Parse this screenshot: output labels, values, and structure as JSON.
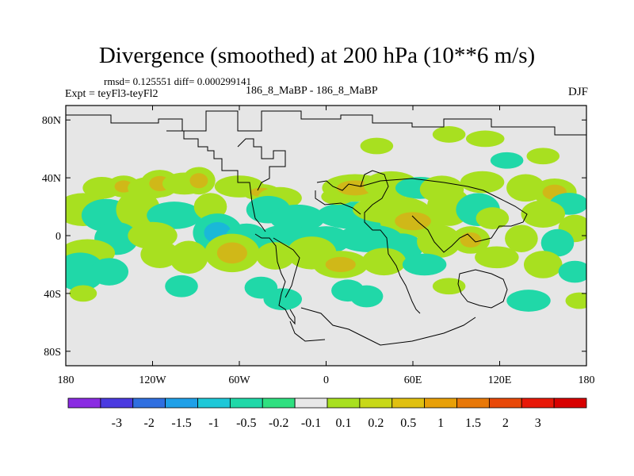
{
  "header": {
    "title": "Divergence (smoothed) at 200 hPa (10**6 m/s)",
    "stats": "rmsd= 0.125551 diff= 0.000299141",
    "experiment": "Expt = teyFl3-teyFl2",
    "case_label": "186_8_MaBP - 186_8_MaBP",
    "season": "DJF"
  },
  "chart_data": {
    "type": "heatmap",
    "title": "Divergence (smoothed) at 200 hPa (10**6 m/s)",
    "xlabel": "",
    "ylabel": "",
    "xlim": [
      -180,
      180
    ],
    "ylim": [
      -90,
      90
    ],
    "x_ticks": [
      {
        "value": -180,
        "label": "180"
      },
      {
        "value": -120,
        "label": "120W"
      },
      {
        "value": -60,
        "label": "60W"
      },
      {
        "value": 0,
        "label": "0"
      },
      {
        "value": 60,
        "label": "60E"
      },
      {
        "value": 120,
        "label": "120E"
      },
      {
        "value": 180,
        "label": "180"
      }
    ],
    "y_ticks": [
      {
        "value": 80,
        "label": "80N"
      },
      {
        "value": 40,
        "label": "40N"
      },
      {
        "value": 0,
        "label": "0"
      },
      {
        "value": -40,
        "label": "40S"
      },
      {
        "value": -80,
        "label": "80S"
      }
    ],
    "colorbar": {
      "colors": [
        "#8a2be2",
        "#4a3ae0",
        "#2f6fe0",
        "#1fa0e8",
        "#1ec8d8",
        "#20d8a8",
        "#2fe080",
        "#e8e8e8",
        "#a8e020",
        "#c8d818",
        "#e0c010",
        "#e8a008",
        "#e87808",
        "#e84808",
        "#e81808",
        "#d80000"
      ],
      "labels": [
        "-3",
        "-2",
        "-1.5",
        "-1",
        "-0.5",
        "-0.2",
        "-0.1",
        "0.1",
        "0.2",
        "0.5",
        "1",
        "1.5",
        "2",
        "3"
      ]
    },
    "blobs": [
      {
        "lon": -155,
        "lat": 33,
        "rx": 7,
        "ry": 4,
        "level": 1
      },
      {
        "lon": -140,
        "lat": 34,
        "rx": 6,
        "ry": 4,
        "level": 2
      },
      {
        "lon": -122,
        "lat": 33,
        "rx": 8,
        "ry": 4,
        "level": 1
      },
      {
        "lon": -115,
        "lat": 36,
        "rx": 7,
        "ry": 5,
        "level": 2
      },
      {
        "lon": -98,
        "lat": 36,
        "rx": 8,
        "ry": 4,
        "level": 1
      },
      {
        "lon": -88,
        "lat": 38,
        "rx": 6,
        "ry": 5,
        "level": 2
      },
      {
        "lon": -60,
        "lat": 34,
        "rx": 9,
        "ry": 4,
        "level": 1
      },
      {
        "lon": -45,
        "lat": 30,
        "rx": 7,
        "ry": 3,
        "level": 2
      },
      {
        "lon": -32,
        "lat": 26,
        "rx": 8,
        "ry": 4,
        "level": 1
      },
      {
        "lon": -168,
        "lat": 18,
        "rx": 10,
        "ry": 6,
        "level": 1
      },
      {
        "lon": -152,
        "lat": 14,
        "rx": 9,
        "ry": 6,
        "level": -1
      },
      {
        "lon": -130,
        "lat": 18,
        "rx": 8,
        "ry": 7,
        "level": 1
      },
      {
        "lon": -105,
        "lat": 14,
        "rx": 10,
        "ry": 5,
        "level": -1
      },
      {
        "lon": -80,
        "lat": 20,
        "rx": 6,
        "ry": 5,
        "level": 1
      },
      {
        "lon": -40,
        "lat": 18,
        "rx": 8,
        "ry": 5,
        "level": -1
      },
      {
        "lon": -20,
        "lat": 12,
        "rx": 10,
        "ry": 5,
        "level": -1
      },
      {
        "lon": -145,
        "lat": -2,
        "rx": 8,
        "ry": 6,
        "level": -1
      },
      {
        "lon": -120,
        "lat": 0,
        "rx": 9,
        "ry": 5,
        "level": 1
      },
      {
        "lon": -75,
        "lat": 2,
        "rx": 9,
        "ry": 7,
        "level": -2
      },
      {
        "lon": -55,
        "lat": -3,
        "rx": 8,
        "ry": 6,
        "level": -1
      },
      {
        "lon": -28,
        "lat": -2,
        "rx": 10,
        "ry": 5,
        "level": -1
      },
      {
        "lon": 0,
        "lat": -3,
        "rx": 9,
        "ry": 5,
        "level": -1
      },
      {
        "lon": -165,
        "lat": -12,
        "rx": 10,
        "ry": 5,
        "level": 1
      },
      {
        "lon": -115,
        "lat": -13,
        "rx": 7,
        "ry": 5,
        "level": 1
      },
      {
        "lon": -95,
        "lat": -15,
        "rx": 7,
        "ry": 6,
        "level": 1
      },
      {
        "lon": -65,
        "lat": -12,
        "rx": 10,
        "ry": 7,
        "level": 2
      },
      {
        "lon": -35,
        "lat": -14,
        "rx": 7,
        "ry": 5,
        "level": 1
      },
      {
        "lon": -10,
        "lat": -12,
        "rx": 9,
        "ry": 6,
        "level": 1
      },
      {
        "lon": -170,
        "lat": -25,
        "rx": 9,
        "ry": 7,
        "level": -1
      },
      {
        "lon": -150,
        "lat": -25,
        "rx": 7,
        "ry": 5,
        "level": -1
      },
      {
        "lon": -100,
        "lat": -35,
        "rx": 6,
        "ry": 4,
        "level": -1
      },
      {
        "lon": -45,
        "lat": -36,
        "rx": 6,
        "ry": 4,
        "level": -1
      },
      {
        "lon": -30,
        "lat": -44,
        "rx": 7,
        "ry": 4,
        "level": -1
      },
      {
        "lon": 15,
        "lat": -38,
        "rx": 6,
        "ry": 4,
        "level": -1
      },
      {
        "lon": 28,
        "lat": -42,
        "rx": 6,
        "ry": 4,
        "level": -1
      },
      {
        "lon": -168,
        "lat": -40,
        "rx": 5,
        "ry": 3,
        "level": 1
      },
      {
        "lon": 20,
        "lat": 14,
        "rx": 14,
        "ry": 5,
        "level": -1
      },
      {
        "lon": 8,
        "lat": 27,
        "rx": 6,
        "ry": 3,
        "level": 1
      },
      {
        "lon": 20,
        "lat": 33,
        "rx": 12,
        "ry": 5,
        "level": 2
      },
      {
        "lon": 45,
        "lat": 35,
        "rx": 10,
        "ry": 5,
        "level": 1
      },
      {
        "lon": 65,
        "lat": 33,
        "rx": 9,
        "ry": 4,
        "level": -1
      },
      {
        "lon": 80,
        "lat": 32,
        "rx": 8,
        "ry": 5,
        "level": 1
      },
      {
        "lon": 108,
        "lat": 37,
        "rx": 8,
        "ry": 4,
        "level": 1
      },
      {
        "lon": 138,
        "lat": 33,
        "rx": 7,
        "ry": 5,
        "level": 1
      },
      {
        "lon": 158,
        "lat": 30,
        "rx": 8,
        "ry": 5,
        "level": 2
      },
      {
        "lon": 168,
        "lat": 22,
        "rx": 7,
        "ry": 4,
        "level": -1
      },
      {
        "lon": 45,
        "lat": 18,
        "rx": 14,
        "ry": 5,
        "level": 1
      },
      {
        "lon": 60,
        "lat": 10,
        "rx": 12,
        "ry": 6,
        "level": 2
      },
      {
        "lon": 85,
        "lat": 20,
        "rx": 8,
        "ry": 7,
        "level": 1
      },
      {
        "lon": 105,
        "lat": 18,
        "rx": 8,
        "ry": 6,
        "level": -1
      },
      {
        "lon": 115,
        "lat": 12,
        "rx": 6,
        "ry": 4,
        "level": 1
      },
      {
        "lon": 150,
        "lat": 15,
        "rx": 8,
        "ry": 5,
        "level": 1
      },
      {
        "lon": 172,
        "lat": 5,
        "rx": 6,
        "ry": 5,
        "level": 1
      },
      {
        "lon": 30,
        "lat": -2,
        "rx": 12,
        "ry": 5,
        "level": -1
      },
      {
        "lon": 52,
        "lat": -8,
        "rx": 8,
        "ry": 5,
        "level": -1
      },
      {
        "lon": 78,
        "lat": -4,
        "rx": 8,
        "ry": 6,
        "level": 1
      },
      {
        "lon": 100,
        "lat": -3,
        "rx": 7,
        "ry": 5,
        "level": 2
      },
      {
        "lon": 135,
        "lat": -2,
        "rx": 6,
        "ry": 5,
        "level": 1
      },
      {
        "lon": 160,
        "lat": -5,
        "rx": 6,
        "ry": 5,
        "level": -1
      },
      {
        "lon": 10,
        "lat": -20,
        "rx": 10,
        "ry": 5,
        "level": 2
      },
      {
        "lon": 40,
        "lat": -18,
        "rx": 8,
        "ry": 5,
        "level": 1
      },
      {
        "lon": 68,
        "lat": -20,
        "rx": 8,
        "ry": 4,
        "level": -1
      },
      {
        "lon": 118,
        "lat": -15,
        "rx": 8,
        "ry": 4,
        "level": 1
      },
      {
        "lon": 150,
        "lat": -20,
        "rx": 7,
        "ry": 5,
        "level": 1
      },
      {
        "lon": 172,
        "lat": -25,
        "rx": 6,
        "ry": 4,
        "level": -1
      },
      {
        "lon": 85,
        "lat": -35,
        "rx": 6,
        "ry": 3,
        "level": 1
      },
      {
        "lon": 140,
        "lat": -45,
        "rx": 8,
        "ry": 4,
        "level": -1
      },
      {
        "lon": 175,
        "lat": -45,
        "rx": 5,
        "ry": 3,
        "level": 1
      },
      {
        "lon": 35,
        "lat": 62,
        "rx": 6,
        "ry": 3,
        "level": 1
      },
      {
        "lon": 85,
        "lat": 70,
        "rx": 6,
        "ry": 3,
        "level": 1
      },
      {
        "lon": 110,
        "lat": 67,
        "rx": 7,
        "ry": 3,
        "level": 1
      },
      {
        "lon": 125,
        "lat": 52,
        "rx": 6,
        "ry": 3,
        "level": -1
      },
      {
        "lon": 150,
        "lat": 55,
        "rx": 6,
        "ry": 3,
        "level": 1
      }
    ]
  }
}
